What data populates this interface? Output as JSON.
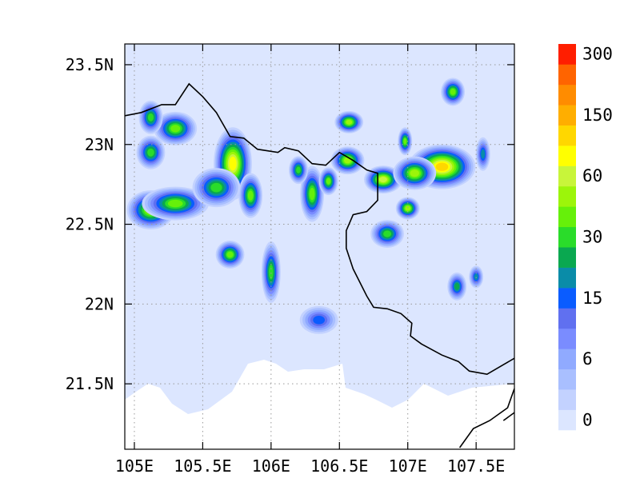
{
  "chart_data": {
    "type": "heatmap",
    "title": "",
    "xlabel": "",
    "ylabel": "",
    "xlim": [
      104.93,
      107.78
    ],
    "ylim": [
      21.09,
      23.63
    ],
    "x_ticks": [
      {
        "value": 105.0,
        "label": "105E"
      },
      {
        "value": 105.5,
        "label": "105.5E"
      },
      {
        "value": 106.0,
        "label": "106E"
      },
      {
        "value": 106.5,
        "label": "106.5E"
      },
      {
        "value": 107.0,
        "label": "107E"
      },
      {
        "value": 107.5,
        "label": "107.5E"
      }
    ],
    "y_ticks": [
      {
        "value": 21.5,
        "label": "21.5N"
      },
      {
        "value": 22.0,
        "label": "22N"
      },
      {
        "value": 22.5,
        "label": "22.5N"
      },
      {
        "value": 23.0,
        "label": "23N"
      },
      {
        "value": 23.5,
        "label": "23.5N"
      }
    ],
    "grid": true,
    "colorbar": {
      "placement": "right",
      "colors": [
        "#dce6ff",
        "#c3d2ff",
        "#a9bfff",
        "#90aaff",
        "#7a8cff",
        "#6070f0",
        "#0a5cff",
        "#0a8ca8",
        "#0aa850",
        "#2adc2a",
        "#66f00a",
        "#9cf50a",
        "#c8f53a",
        "#ffff00",
        "#ffd700",
        "#ffae00",
        "#ff8c00",
        "#ff6400",
        "#ff1e00"
      ],
      "labels": [
        {
          "index": 0,
          "text": "0"
        },
        {
          "index": 3,
          "text": "6"
        },
        {
          "index": 6,
          "text": "15"
        },
        {
          "index": 9,
          "text": "30"
        },
        {
          "index": 12,
          "text": "60"
        },
        {
          "index": 15,
          "text": "150"
        },
        {
          "index": 18,
          "text": "300"
        }
      ]
    },
    "base_fill": "#dce6ff",
    "no_data_color": "#ffffff",
    "blobs": [
      {
        "x": 105.12,
        "y": 22.59,
        "rx": 0.1,
        "ry": 0.07,
        "level": 11
      },
      {
        "x": 105.3,
        "y": 22.63,
        "rx": 0.14,
        "ry": 0.06,
        "level": 10
      },
      {
        "x": 105.72,
        "y": 22.88,
        "rx": 0.08,
        "ry": 0.13,
        "level": 13
      },
      {
        "x": 105.85,
        "y": 22.68,
        "rx": 0.05,
        "ry": 0.08,
        "level": 10
      },
      {
        "x": 105.3,
        "y": 23.1,
        "rx": 0.09,
        "ry": 0.06,
        "level": 10
      },
      {
        "x": 105.12,
        "y": 23.17,
        "rx": 0.05,
        "ry": 0.06,
        "level": 9
      },
      {
        "x": 105.12,
        "y": 22.95,
        "rx": 0.06,
        "ry": 0.06,
        "level": 9
      },
      {
        "x": 106.3,
        "y": 22.69,
        "rx": 0.05,
        "ry": 0.1,
        "level": 10
      },
      {
        "x": 106.2,
        "y": 22.84,
        "rx": 0.04,
        "ry": 0.05,
        "level": 9
      },
      {
        "x": 106.42,
        "y": 22.77,
        "rx": 0.04,
        "ry": 0.05,
        "level": 10
      },
      {
        "x": 106.57,
        "y": 23.14,
        "rx": 0.06,
        "ry": 0.04,
        "level": 11
      },
      {
        "x": 106.56,
        "y": 22.9,
        "rx": 0.07,
        "ry": 0.05,
        "level": 11
      },
      {
        "x": 106.82,
        "y": 22.78,
        "rx": 0.08,
        "ry": 0.05,
        "level": 12
      },
      {
        "x": 107.25,
        "y": 22.86,
        "rx": 0.14,
        "ry": 0.08,
        "level": 14
      },
      {
        "x": 107.05,
        "y": 22.82,
        "rx": 0.09,
        "ry": 0.06,
        "level": 11
      },
      {
        "x": 106.98,
        "y": 23.02,
        "rx": 0.03,
        "ry": 0.05,
        "level": 10
      },
      {
        "x": 107.0,
        "y": 22.6,
        "rx": 0.05,
        "ry": 0.04,
        "level": 11
      },
      {
        "x": 106.85,
        "y": 22.44,
        "rx": 0.07,
        "ry": 0.05,
        "level": 9
      },
      {
        "x": 106.0,
        "y": 22.2,
        "rx": 0.04,
        "ry": 0.11,
        "level": 9
      },
      {
        "x": 105.7,
        "y": 22.31,
        "rx": 0.06,
        "ry": 0.05,
        "level": 10
      },
      {
        "x": 107.33,
        "y": 23.33,
        "rx": 0.05,
        "ry": 0.05,
        "level": 10
      },
      {
        "x": 107.36,
        "y": 22.11,
        "rx": 0.04,
        "ry": 0.05,
        "level": 8
      },
      {
        "x": 107.5,
        "y": 22.17,
        "rx": 0.03,
        "ry": 0.04,
        "level": 7
      },
      {
        "x": 107.55,
        "y": 22.94,
        "rx": 0.03,
        "ry": 0.06,
        "level": 7
      },
      {
        "x": 106.35,
        "y": 21.9,
        "rx": 0.08,
        "ry": 0.05,
        "level": 6
      },
      {
        "x": 105.6,
        "y": 22.73,
        "rx": 0.1,
        "ry": 0.07,
        "level": 9
      }
    ],
    "coastline": [
      [
        [
          104.93,
          23.18
        ],
        [
          105.05,
          23.2
        ],
        [
          105.2,
          23.25
        ],
        [
          105.3,
          23.25
        ],
        [
          105.4,
          23.38
        ],
        [
          105.5,
          23.3
        ],
        [
          105.6,
          23.2
        ],
        [
          105.7,
          23.05
        ],
        [
          105.8,
          23.04
        ],
        [
          105.9,
          22.97
        ],
        [
          106.05,
          22.95
        ],
        [
          106.1,
          22.98
        ],
        [
          106.2,
          22.96
        ],
        [
          106.3,
          22.88
        ],
        [
          106.4,
          22.87
        ],
        [
          106.5,
          22.95
        ],
        [
          106.6,
          22.9
        ],
        [
          106.7,
          22.84
        ],
        [
          106.78,
          22.82
        ],
        [
          106.78,
          22.65
        ],
        [
          106.7,
          22.58
        ],
        [
          106.6,
          22.56
        ],
        [
          106.55,
          22.46
        ],
        [
          106.55,
          22.35
        ],
        [
          106.6,
          22.22
        ],
        [
          106.7,
          22.05
        ],
        [
          106.75,
          21.98
        ],
        [
          106.85,
          21.97
        ],
        [
          106.95,
          21.94
        ],
        [
          107.03,
          21.88
        ],
        [
          107.02,
          21.8
        ],
        [
          107.1,
          21.75
        ],
        [
          107.25,
          21.68
        ],
        [
          107.37,
          21.64
        ],
        [
          107.45,
          21.58
        ],
        [
          107.58,
          21.56
        ],
        [
          107.7,
          21.62
        ],
        [
          107.78,
          21.66
        ]
      ],
      [
        [
          107.78,
          21.47
        ],
        [
          107.73,
          21.35
        ],
        [
          107.6,
          21.27
        ],
        [
          107.48,
          21.22
        ],
        [
          107.38,
          21.1
        ]
      ],
      [
        [
          107.78,
          21.32
        ],
        [
          107.7,
          21.27
        ]
      ]
    ]
  }
}
